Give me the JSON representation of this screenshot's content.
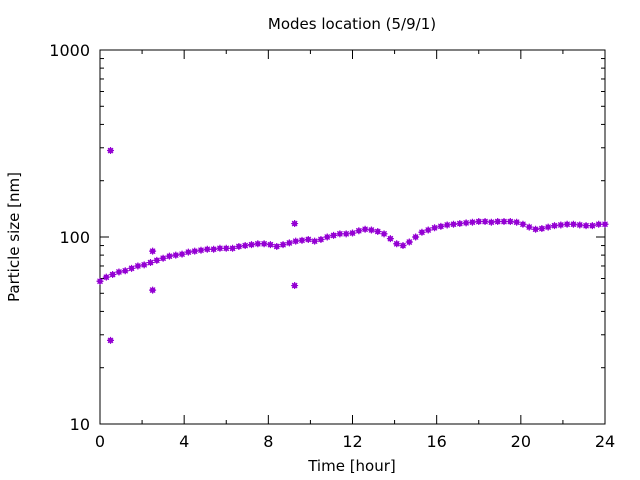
{
  "chart_data": {
    "type": "scatter",
    "title": "Modes location (5/9/1)",
    "xlabel": "Time [hour]",
    "ylabel": "Particle size [nm]",
    "xlim": [
      0,
      24
    ],
    "ylim": [
      10,
      1000
    ],
    "yscale": "log",
    "grid": false,
    "legend": "none",
    "x_ticks": [
      0,
      4,
      8,
      12,
      16,
      20,
      24
    ],
    "x_tick_labels": [
      "0",
      "4",
      "8",
      "12",
      "16",
      "20",
      "24"
    ],
    "y_ticks": [
      10,
      100,
      1000
    ],
    "y_tick_labels": [
      "10",
      "100",
      "1000"
    ],
    "marker_color": "#9400d3",
    "series": [
      {
        "points": [
          [
            0,
            58
          ],
          [
            0.3,
            61
          ],
          [
            0.6,
            63
          ],
          [
            0.9,
            65
          ],
          [
            1.2,
            66
          ],
          [
            1.5,
            68
          ],
          [
            1.8,
            70
          ],
          [
            2.1,
            71
          ],
          [
            2.4,
            73
          ],
          [
            2.7,
            75
          ],
          [
            3.0,
            77
          ],
          [
            3.3,
            79
          ],
          [
            3.6,
            80
          ],
          [
            3.9,
            81
          ],
          [
            4.2,
            83
          ],
          [
            4.5,
            84
          ],
          [
            4.8,
            85
          ],
          [
            5.1,
            86
          ],
          [
            5.4,
            86
          ],
          [
            5.7,
            87
          ],
          [
            6.0,
            87
          ],
          [
            6.3,
            87
          ],
          [
            6.6,
            89
          ],
          [
            6.9,
            90
          ],
          [
            7.2,
            91
          ],
          [
            7.5,
            92
          ],
          [
            7.8,
            92
          ],
          [
            8.1,
            91
          ],
          [
            8.4,
            89
          ],
          [
            8.7,
            91
          ],
          [
            9.0,
            93
          ],
          [
            9.3,
            95
          ],
          [
            9.6,
            96
          ],
          [
            9.9,
            97
          ],
          [
            10.2,
            95
          ],
          [
            10.5,
            97
          ],
          [
            10.8,
            100
          ],
          [
            11.1,
            102
          ],
          [
            11.4,
            104
          ],
          [
            11.7,
            104
          ],
          [
            12.0,
            105
          ],
          [
            12.3,
            108
          ],
          [
            12.6,
            110
          ],
          [
            12.9,
            109
          ],
          [
            13.2,
            107
          ],
          [
            13.5,
            104
          ],
          [
            13.8,
            98
          ],
          [
            14.1,
            92
          ],
          [
            14.4,
            90
          ],
          [
            14.7,
            94
          ],
          [
            15.0,
            100
          ],
          [
            15.3,
            106
          ],
          [
            15.6,
            109
          ],
          [
            15.9,
            112
          ],
          [
            16.2,
            114
          ],
          [
            16.5,
            116
          ],
          [
            16.8,
            117
          ],
          [
            17.1,
            118
          ],
          [
            17.4,
            119
          ],
          [
            17.7,
            120
          ],
          [
            18.0,
            121
          ],
          [
            18.3,
            121
          ],
          [
            18.6,
            120
          ],
          [
            18.9,
            121
          ],
          [
            19.2,
            121
          ],
          [
            19.5,
            121
          ],
          [
            19.8,
            120
          ],
          [
            20.1,
            117
          ],
          [
            20.4,
            113
          ],
          [
            20.7,
            110
          ],
          [
            21.0,
            111
          ],
          [
            21.3,
            113
          ],
          [
            21.6,
            115
          ],
          [
            21.9,
            116
          ],
          [
            22.2,
            117
          ],
          [
            22.5,
            117
          ],
          [
            22.8,
            116
          ],
          [
            23.1,
            115
          ],
          [
            23.4,
            115
          ],
          [
            23.7,
            117
          ],
          [
            24.0,
            117
          ],
          [
            0.5,
            290
          ],
          [
            0.5,
            28
          ],
          [
            2.5,
            84
          ],
          [
            2.5,
            52
          ],
          [
            9.25,
            118
          ],
          [
            9.25,
            55
          ]
        ]
      }
    ]
  }
}
